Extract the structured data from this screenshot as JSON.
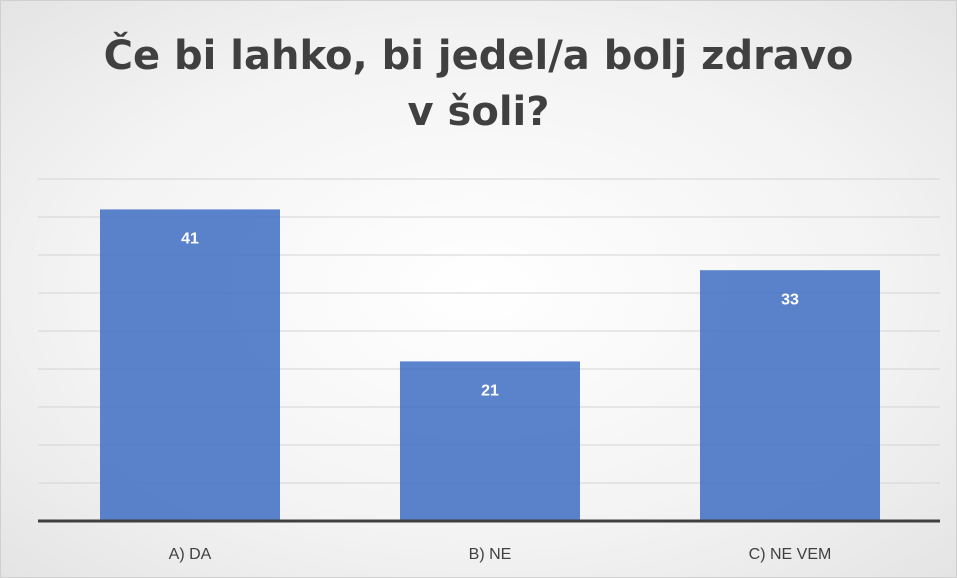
{
  "chart_data": {
    "type": "bar",
    "title": "Če bi lahko, bi jedel/a bolj zdravo v šoli?",
    "categories": [
      "A) DA",
      "B) NE",
      "C) NE VEM"
    ],
    "values": [
      41,
      21,
      33
    ],
    "color": "#4472c4",
    "ylim": [
      0,
      45
    ],
    "yticks": [
      0,
      5,
      10,
      15,
      20,
      25,
      30,
      35,
      40,
      45
    ],
    "grid": true
  }
}
